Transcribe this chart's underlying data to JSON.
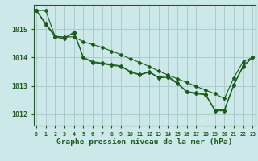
{
  "background_color": "#cce8e8",
  "grid_color": "#aacccc",
  "line_color": "#1a5c1a",
  "marker_color": "#1a5c1a",
  "title": "Graphe pression niveau de la mer (hPa)",
  "title_fontsize": 6.8,
  "xlim": [
    -0.3,
    23.3
  ],
  "ylim": [
    1011.6,
    1015.85
  ],
  "yticks": [
    1012,
    1013,
    1014,
    1015
  ],
  "ytick_fontsize": 6.0,
  "xtick_fontsize": 4.8,
  "xticks": [
    0,
    1,
    2,
    3,
    4,
    5,
    6,
    7,
    8,
    9,
    10,
    11,
    12,
    13,
    14,
    15,
    16,
    17,
    18,
    19,
    20,
    21,
    22,
    23
  ],
  "series1": [
    1015.65,
    1015.2,
    1014.75,
    1014.7,
    1014.85,
    1014.0,
    1013.85,
    1013.8,
    1013.75,
    1013.7,
    1013.5,
    1013.4,
    1013.5,
    1013.3,
    1013.35,
    1013.1,
    1012.8,
    1012.75,
    1012.7,
    1012.15,
    1012.15,
    1013.05,
    1013.7,
    1014.0
  ],
  "series2": [
    1015.65,
    1015.15,
    1014.72,
    1014.65,
    1014.9,
    1014.0,
    1013.82,
    1013.78,
    1013.72,
    1013.68,
    1013.48,
    1013.38,
    1013.48,
    1013.28,
    1013.3,
    1013.08,
    1012.78,
    1012.72,
    1012.68,
    1012.12,
    1012.12,
    1013.02,
    1013.68,
    1014.0
  ],
  "series3": [
    1015.65,
    1015.65,
    1014.72,
    1014.72,
    1014.72,
    1014.55,
    1014.45,
    1014.35,
    1014.22,
    1014.1,
    1013.95,
    1013.82,
    1013.68,
    1013.52,
    1013.38,
    1013.25,
    1013.12,
    1012.98,
    1012.85,
    1012.72,
    1012.55,
    1013.28,
    1013.85,
    1014.0
  ]
}
